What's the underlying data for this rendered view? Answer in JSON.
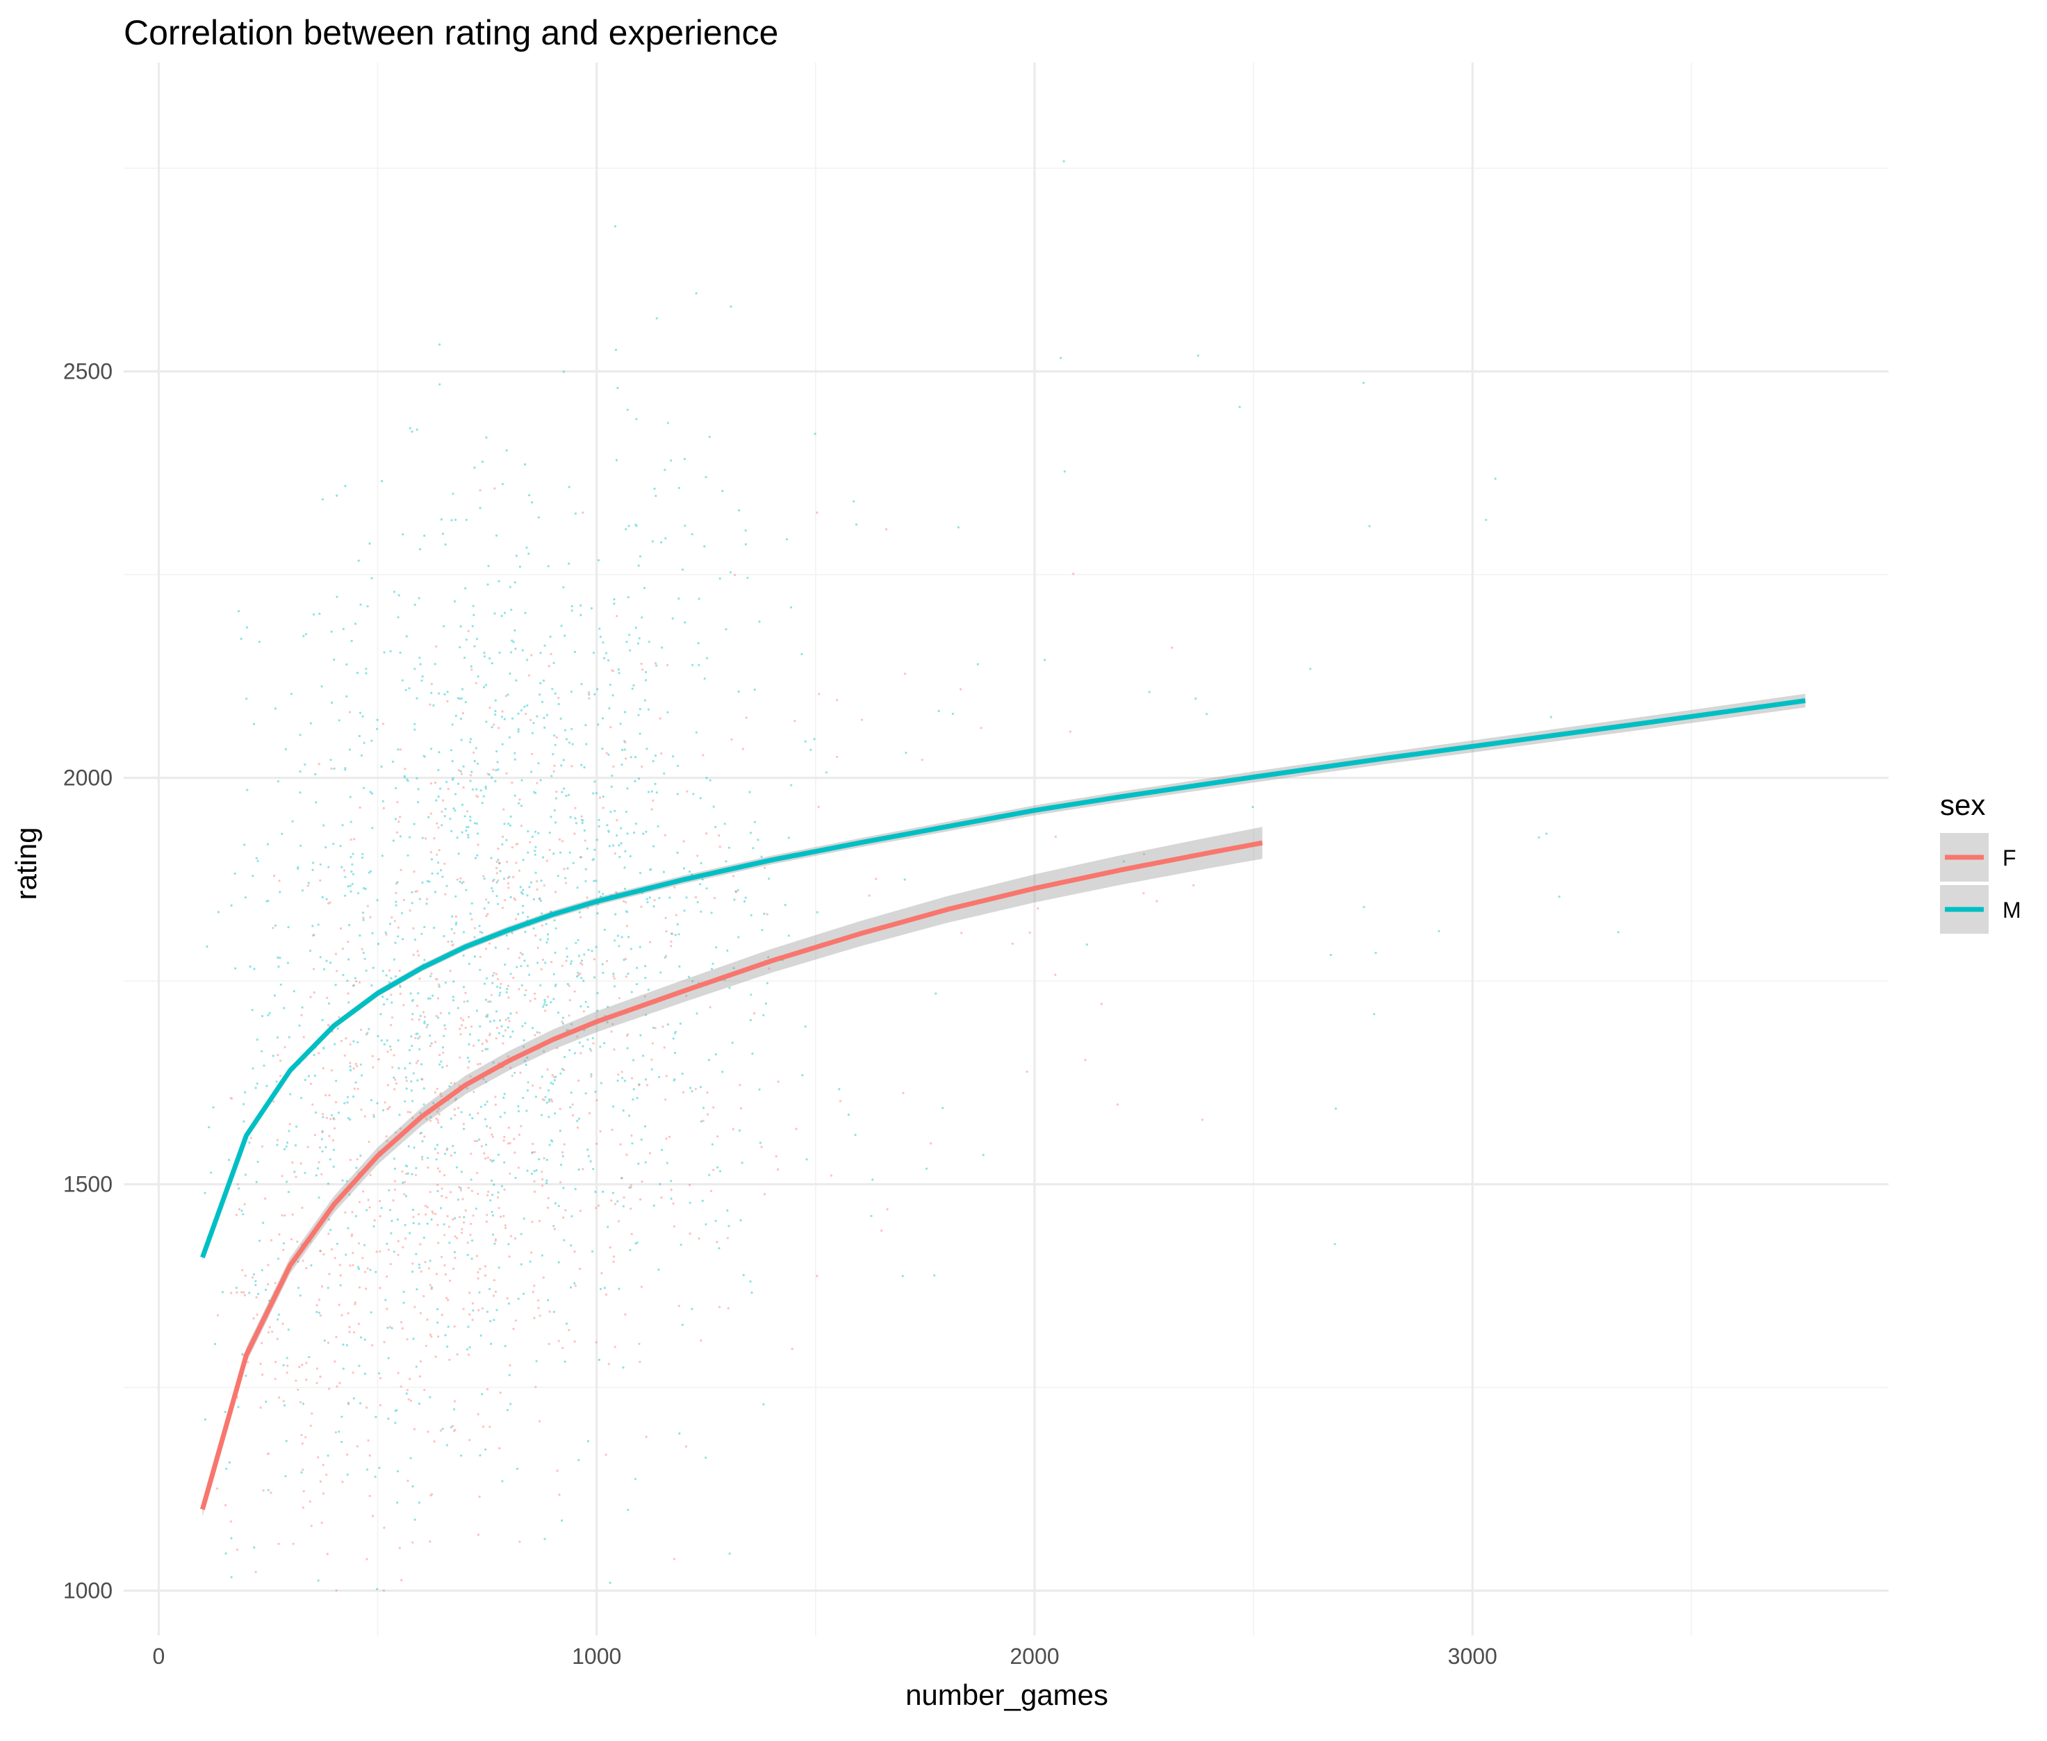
{
  "chart_data": {
    "type": "scatter",
    "title": "Correlation between rating and experience",
    "xlabel": "number_games",
    "ylabel": "rating",
    "xlim": [
      -80,
      3950
    ],
    "ylim": [
      945,
      2880
    ],
    "x_ticks": [
      0,
      1000,
      2000,
      3000
    ],
    "x_tick_labels": [
      "0",
      "1000",
      "2000",
      "3000"
    ],
    "x_minor": [
      500,
      1500,
      2500,
      3500
    ],
    "y_ticks": [
      1000,
      1500,
      2000,
      2500
    ],
    "y_tick_labels": [
      "1000",
      "1500",
      "2000",
      "2500"
    ],
    "y_minor": [
      1250,
      1750,
      2250,
      2750
    ],
    "grid": true,
    "legend": {
      "title": "sex",
      "position": "right",
      "entries": [
        {
          "label": "F",
          "color": "#F8766D"
        },
        {
          "label": "M",
          "color": "#00BFC4"
        }
      ]
    },
    "series": [
      {
        "name": "F",
        "color": "#F8766D",
        "kind": "fitted-curve",
        "x": [
          100,
          200,
          300,
          400,
          500,
          600,
          700,
          800,
          900,
          1000,
          1200,
          1400,
          1600,
          1800,
          2000,
          2200,
          2400,
          2520
        ],
        "y": [
          1100,
          1290,
          1400,
          1475,
          1535,
          1583,
          1622,
          1652,
          1678,
          1700,
          1738,
          1775,
          1808,
          1838,
          1864,
          1887,
          1908,
          1920
        ]
      },
      {
        "name": "M",
        "color": "#00BFC4",
        "kind": "fitted-curve",
        "x": [
          100,
          200,
          300,
          400,
          500,
          600,
          700,
          800,
          900,
          1000,
          1200,
          1400,
          1600,
          1800,
          2000,
          2200,
          2500,
          2800,
          3100,
          3400,
          3760
        ],
        "y": [
          1410,
          1560,
          1640,
          1695,
          1735,
          1766,
          1792,
          1813,
          1832,
          1848,
          1875,
          1899,
          1920,
          1940,
          1960,
          1977,
          2001,
          2024,
          2046,
          2068,
          2095
        ]
      }
    ],
    "scatter_note_colors": {
      "M": "#00BFC4",
      "F": "#F8766D"
    }
  }
}
